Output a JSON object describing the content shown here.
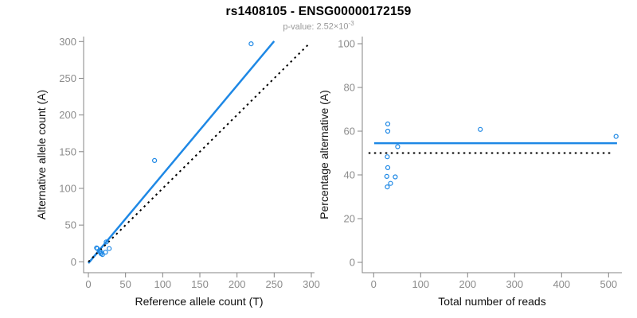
{
  "header": {
    "title": "rs1408105 - ENSG00000172159",
    "subtitle_label": "p-value:",
    "p_value_mantissa": "2.52×10",
    "p_value_exponent": "-3"
  },
  "colors": {
    "accent_blue": "#1E88E5",
    "line_black": "#000000",
    "axis_gray": "#848484",
    "tick_label_gray": "#8c8c8c",
    "axis_title_color": "#111111"
  },
  "chart_data": [
    {
      "type": "scatter",
      "name": "allele-counts",
      "xlabel": "Reference allele count (T)",
      "ylabel": "Alternative allele count (A)",
      "xlim": [
        0,
        300
      ],
      "ylim": [
        0,
        300
      ],
      "xticks": [
        0,
        50,
        100,
        150,
        200,
        250,
        300
      ],
      "yticks": [
        0,
        50,
        100,
        150,
        200,
        250,
        300
      ],
      "marker": "open-circle",
      "grid": false,
      "points": [
        [
          11,
          19
        ],
        [
          12,
          18
        ],
        [
          15,
          14
        ],
        [
          17,
          13
        ],
        [
          17,
          11
        ],
        [
          19,
          10
        ],
        [
          23,
          13
        ],
        [
          24,
          27
        ],
        [
          28,
          18
        ],
        [
          89,
          138
        ],
        [
          219,
          297
        ]
      ],
      "lines": [
        {
          "name": "fit-line",
          "style": "solid",
          "color_key": "accent_blue",
          "width": 2.5,
          "points": [
            [
              0,
              -2
            ],
            [
              250,
              300.5
            ]
          ]
        },
        {
          "name": "identity-line",
          "style": "dotted",
          "color_key": "line_black",
          "width": 2,
          "points": [
            [
              0,
              0
            ],
            [
              297,
              297
            ]
          ]
        }
      ]
    },
    {
      "type": "scatter",
      "name": "percentage-vs-reads",
      "xlabel": "Total number of reads",
      "ylabel": "Percentage alternative (A)",
      "xlim": [
        0,
        520
      ],
      "ylim": [
        0,
        100
      ],
      "xticks": [
        0,
        100,
        200,
        300,
        400,
        500
      ],
      "yticks": [
        0,
        20,
        40,
        60,
        80,
        100
      ],
      "marker": "open-circle",
      "grid": false,
      "points": [
        [
          30,
          63.3
        ],
        [
          30,
          60
        ],
        [
          29,
          48.3
        ],
        [
          30,
          43.3
        ],
        [
          28,
          39.3
        ],
        [
          29,
          34.5
        ],
        [
          36,
          36.1
        ],
        [
          46,
          39.1
        ],
        [
          51,
          52.9
        ],
        [
          227,
          60.8
        ],
        [
          516,
          57.6
        ]
      ],
      "lines": [
        {
          "name": "fit-line",
          "style": "solid",
          "color_key": "accent_blue",
          "width": 2.5,
          "points": [
            [
              1,
              54.5
            ],
            [
              518,
              54.5
            ]
          ]
        },
        {
          "name": "reference-line",
          "style": "dotted",
          "color_key": "line_black",
          "width": 2,
          "points": [
            [
              -11,
              50
            ],
            [
              508,
              50
            ]
          ]
        }
      ]
    }
  ]
}
